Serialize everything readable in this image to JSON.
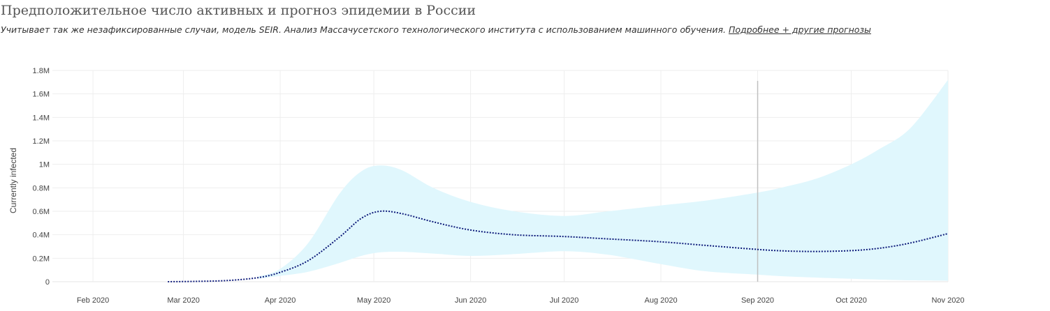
{
  "header": {
    "title": "Предположительное число активных и прогноз эпидемии в России",
    "subtitle": "Учитывает так же незафиксированные случаи, модель SEIR. Анализ Массачусетского технологического института с использованием машинного обучения.",
    "link_label": "Подробнее + другие прогнозы"
  },
  "chart_data": {
    "type": "line",
    "title": "",
    "xlabel": "",
    "ylabel": "Currently infected",
    "x_ticks": [
      "Feb 2020",
      "Mar 2020",
      "Apr 2020",
      "May 2020",
      "Jun 2020",
      "Jul 2020",
      "Aug 2020",
      "Sep 2020",
      "Oct 2020",
      "Nov 2020"
    ],
    "y_ticks": [
      "0",
      "0.2M",
      "0.4M",
      "0.6M",
      "0.8M",
      "1M",
      "1.2M",
      "1.4M",
      "1.6M",
      "1.8M"
    ],
    "ylim": [
      0,
      1800000
    ],
    "xlim": [
      "2020-01-19",
      "2020-11-01"
    ],
    "grid": true,
    "current_date_marker": "2020-09-01",
    "colors": {
      "line": "#0d1a7a",
      "band": "#e0f7fd",
      "marker": "#c0c0c0",
      "grid": "#eeeeee"
    },
    "series": [
      {
        "style": "dotted",
        "x": [
          "2020-02-25",
          "2020-03-05",
          "2020-03-15",
          "2020-03-25",
          "2020-04-01",
          "2020-04-10",
          "2020-04-20",
          "2020-04-27",
          "2020-05-03",
          "2020-05-10",
          "2020-05-20",
          "2020-06-01",
          "2020-06-15",
          "2020-07-01",
          "2020-07-15",
          "2020-08-01",
          "2020-08-15",
          "2020-09-01",
          "2020-09-10",
          "2020-09-20",
          "2020-10-01",
          "2020-10-10",
          "2020-10-20",
          "2020-11-01"
        ],
        "values": [
          0,
          3000,
          10000,
          35000,
          80000,
          180000,
          380000,
          540000,
          600000,
          580000,
          510000,
          440000,
          400000,
          385000,
          365000,
          340000,
          310000,
          275000,
          262000,
          258000,
          265000,
          285000,
          330000,
          410000
        ]
      }
    ],
    "band": {
      "x": [
        "2020-03-25",
        "2020-04-01",
        "2020-04-10",
        "2020-04-20",
        "2020-04-27",
        "2020-05-03",
        "2020-05-10",
        "2020-05-20",
        "2020-06-01",
        "2020-06-15",
        "2020-07-01",
        "2020-07-15",
        "2020-08-01",
        "2020-08-15",
        "2020-09-01",
        "2020-09-10",
        "2020-09-20",
        "2020-10-01",
        "2020-10-10",
        "2020-10-20",
        "2020-11-01"
      ],
      "upper": [
        45000,
        110000,
        330000,
        750000,
        940000,
        990000,
        950000,
        800000,
        680000,
        600000,
        560000,
        600000,
        650000,
        690000,
        760000,
        810000,
        880000,
        1000000,
        1130000,
        1310000,
        1720000
      ],
      "lower": [
        25000,
        50000,
        85000,
        160000,
        220000,
        250000,
        255000,
        240000,
        220000,
        235000,
        260000,
        230000,
        150000,
        90000,
        60000,
        45000,
        35000,
        25000,
        18000,
        12000,
        8000
      ]
    }
  }
}
